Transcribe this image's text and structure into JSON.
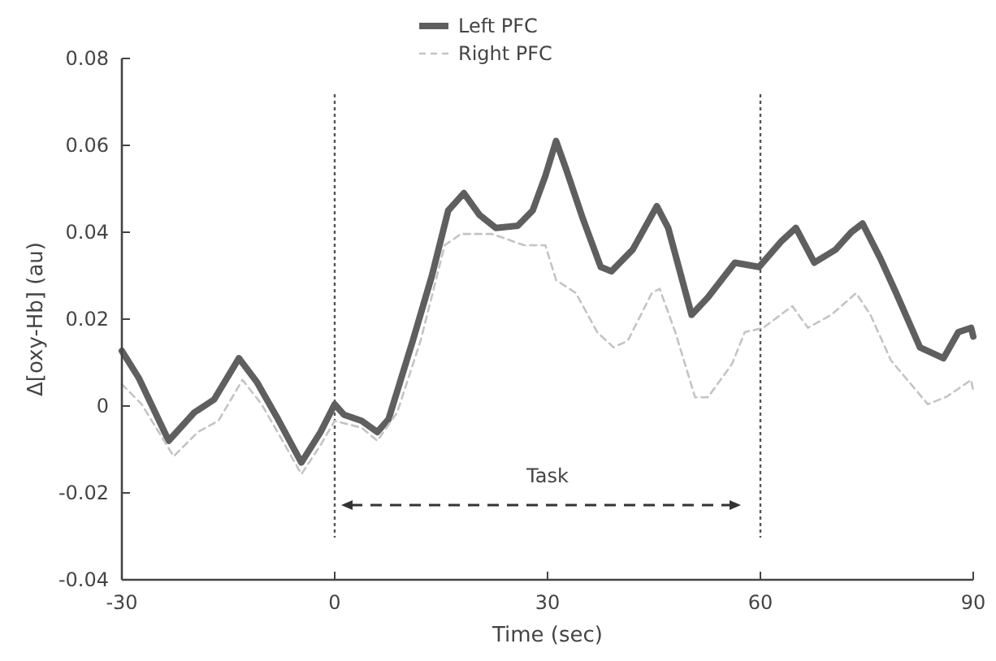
{
  "chart_data": {
    "type": "line",
    "xlabel": "Time (sec)",
    "ylabel": "Δ[oxy-Hb] (au)",
    "xlim": [
      -30,
      90
    ],
    "xticks": [
      -30,
      0,
      30,
      60,
      90
    ],
    "ylim": [
      -0.04,
      0.08
    ],
    "yticks": [
      -0.04,
      -0.02,
      0,
      0.02,
      0.04,
      0.06,
      0.08
    ],
    "legend": "top",
    "grid": false,
    "annotations": [
      "Task"
    ],
    "ref_lines": [
      {
        "axis": "x",
        "value": 0,
        "line_style": "dotted",
        "color": "#555555"
      },
      {
        "axis": "x",
        "value": 60,
        "line_style": "dotted",
        "color": "#555555"
      }
    ],
    "series": [
      {
        "name": "Left PFC",
        "color": "#5f5f5f",
        "line_style": "solid",
        "x": [
          -30,
          -27.6,
          -23.4,
          -19.8,
          -17,
          -13.5,
          -11,
          -8,
          -4.7,
          -2,
          0,
          1.3,
          3.8,
          6,
          7.6,
          11,
          13.7,
          16,
          18.2,
          20.4,
          22.7,
          25.8,
          27.9,
          29.7,
          31.2,
          32.6,
          35,
          37.5,
          39,
          42,
          45.4,
          47,
          50.3,
          52.6,
          56.4,
          59.8,
          63,
          65,
          67.6,
          70.6,
          72.8,
          74.4,
          76.9,
          79,
          82.5,
          85.8,
          87.9,
          89.7,
          90
        ],
        "values": [
          0.0127,
          0.0064,
          -0.008,
          -0.0015,
          0.0015,
          0.011,
          0.0056,
          -0.003,
          -0.013,
          -0.006,
          0.0004,
          -0.002,
          -0.0034,
          -0.006,
          -0.003,
          0.015,
          0.03,
          0.045,
          0.049,
          0.044,
          0.041,
          0.0415,
          0.045,
          0.053,
          0.061,
          0.0546,
          0.043,
          0.032,
          0.031,
          0.036,
          0.046,
          0.041,
          0.021,
          0.025,
          0.033,
          0.032,
          0.038,
          0.041,
          0.033,
          0.036,
          0.04,
          0.042,
          0.034,
          0.0265,
          0.0135,
          0.011,
          0.017,
          0.018,
          0.016
        ]
      },
      {
        "name": "Right PFC",
        "color": "#c4c4c4",
        "line_style": "dashed",
        "x": [
          -30,
          -27.2,
          -22.7,
          -19.3,
          -16.4,
          -13,
          -10.3,
          -7,
          -4.7,
          -2,
          0,
          3.8,
          6,
          8.8,
          12.1,
          15.5,
          17.8,
          22.2,
          26.7,
          29.7,
          31.2,
          34,
          37,
          39.3,
          41.3,
          44.7,
          45.8,
          48,
          50.8,
          52.6,
          56,
          57.8,
          60.4,
          64.5,
          66.7,
          70,
          73.5,
          75.5,
          78.4,
          83.6,
          86.3,
          89.7,
          90
        ],
        "values": [
          0.005,
          0.0004,
          -0.0116,
          -0.006,
          -0.0034,
          0.006,
          0.0004,
          -0.009,
          -0.0157,
          -0.009,
          -0.0034,
          -0.005,
          -0.008,
          -0.0015,
          0.015,
          0.037,
          0.0396,
          0.0396,
          0.037,
          0.037,
          0.029,
          0.026,
          0.017,
          0.0135,
          0.015,
          0.026,
          0.027,
          0.017,
          0.002,
          0.002,
          0.0097,
          0.017,
          0.018,
          0.023,
          0.018,
          0.021,
          0.026,
          0.021,
          0.0105,
          0.0004,
          0.0022,
          0.006,
          0.0035
        ]
      }
    ]
  }
}
